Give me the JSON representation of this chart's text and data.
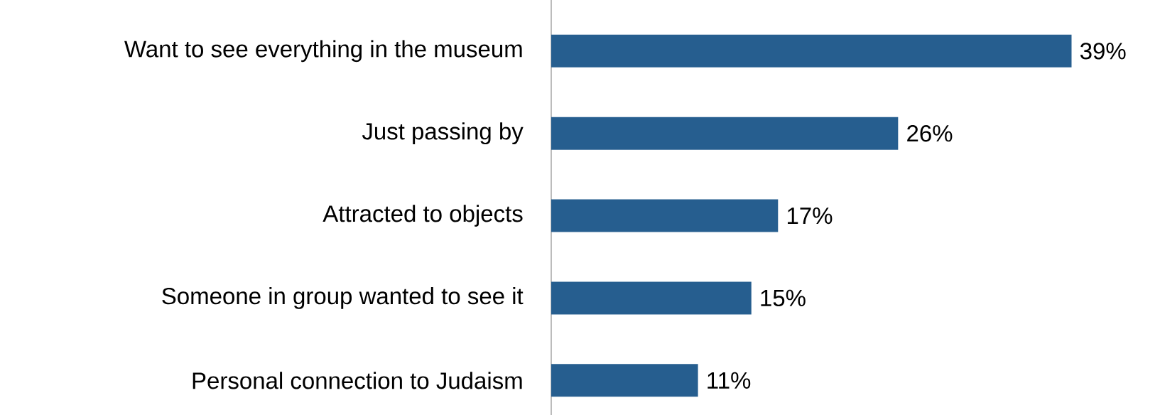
{
  "chart_data": {
    "type": "bar",
    "orientation": "horizontal",
    "categories": [
      "Want to see everything in the museum",
      "Just passing by",
      "Attracted to objects",
      "Someone in group wanted to see it",
      "Personal connection to Judaism"
    ],
    "values": [
      39,
      26,
      17,
      15,
      11
    ],
    "value_labels": [
      "39%",
      "26%",
      "17%",
      "15%",
      "11%"
    ],
    "color": "#265e8f"
  }
}
